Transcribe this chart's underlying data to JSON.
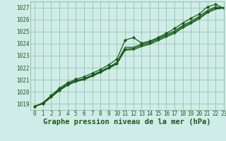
{
  "title": "Graphe pression niveau de la mer (hPa)",
  "background_color": "#d0ece8",
  "plot_bg_color": "#d0ece8",
  "grid_color": "#7ab090",
  "line_color": "#1a5c1a",
  "marker_color": "#1a5c1a",
  "ylim": [
    1018.5,
    1027.5
  ],
  "xlim": [
    -0.5,
    23
  ],
  "yticks": [
    1019,
    1020,
    1021,
    1022,
    1023,
    1024,
    1025,
    1026,
    1027
  ],
  "xticks": [
    0,
    1,
    2,
    3,
    4,
    5,
    6,
    7,
    8,
    9,
    10,
    11,
    12,
    13,
    14,
    15,
    16,
    17,
    18,
    19,
    20,
    21,
    22,
    23
  ],
  "series": [
    {
      "y": [
        1018.8,
        1019.1,
        1019.7,
        1020.3,
        1020.75,
        1021.05,
        1021.25,
        1021.55,
        1021.85,
        1022.25,
        1022.7,
        1024.3,
        1024.5,
        1024.05,
        1024.2,
        1024.5,
        1024.85,
        1025.25,
        1025.7,
        1026.1,
        1026.45,
        1027.05,
        1027.25,
        1026.95
      ],
      "marker": "D",
      "lw": 0.9
    },
    {
      "y": [
        1018.8,
        1019.05,
        1019.6,
        1020.2,
        1020.65,
        1020.95,
        1021.1,
        1021.4,
        1021.7,
        1022.05,
        1022.45,
        1023.7,
        1023.7,
        1023.95,
        1024.15,
        1024.45,
        1024.75,
        1025.05,
        1025.5,
        1025.85,
        1026.25,
        1026.75,
        1027.05,
        1026.95
      ],
      "marker": null,
      "lw": 0.9
    },
    {
      "y": [
        1018.8,
        1019.05,
        1019.6,
        1020.15,
        1020.6,
        1020.9,
        1021.05,
        1021.35,
        1021.65,
        1022.0,
        1022.35,
        1023.55,
        1023.6,
        1023.85,
        1024.05,
        1024.35,
        1024.65,
        1024.95,
        1025.4,
        1025.75,
        1026.15,
        1026.65,
        1026.95,
        1026.95
      ],
      "marker": "D",
      "lw": 0.9
    },
    {
      "y": [
        1018.8,
        1019.0,
        1019.55,
        1020.1,
        1020.55,
        1020.85,
        1021.0,
        1021.3,
        1021.6,
        1021.95,
        1022.3,
        1023.45,
        1023.5,
        1023.75,
        1023.95,
        1024.25,
        1024.55,
        1024.85,
        1025.3,
        1025.65,
        1026.05,
        1026.55,
        1026.85,
        1026.95
      ],
      "marker": null,
      "lw": 0.9
    }
  ],
  "title_fontsize": 7.5,
  "tick_fontsize": 5.5
}
